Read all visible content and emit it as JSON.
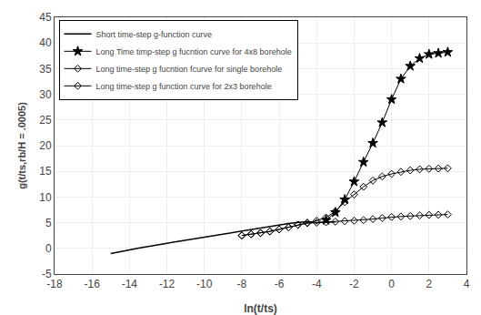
{
  "chart_data": {
    "type": "line",
    "xlabel": "ln(t/ts)",
    "ylabel": "g(t/ts,rb/H = .0005)",
    "xlim": [
      -18,
      4
    ],
    "ylim": [
      -5,
      45
    ],
    "xticks": [
      -18,
      -16,
      -14,
      -12,
      -10,
      -8,
      -6,
      -4,
      -2,
      0,
      2,
      4
    ],
    "yticks": [
      -5,
      0,
      5,
      10,
      15,
      20,
      25,
      30,
      35,
      40,
      45
    ],
    "grid": true,
    "legend": "upper left",
    "series": [
      {
        "name": "Short time-step g-function curve",
        "color": "#000000",
        "marker": "none",
        "x": [
          -15,
          -14.5,
          -14,
          -13.5,
          -13,
          -12.5,
          -12,
          -11.5,
          -11,
          -10.5,
          -10,
          -9.5,
          -9,
          -8.5,
          -8,
          -7.5,
          -7,
          -6.5,
          -6,
          -5.5,
          -5,
          -4.5,
          -4,
          -3.5,
          -3
        ],
        "values": [
          -1.0,
          -0.7,
          -0.3,
          0.05,
          0.4,
          0.7,
          1.0,
          1.3,
          1.6,
          1.9,
          2.2,
          2.5,
          2.8,
          3.1,
          3.4,
          3.7,
          4.0,
          4.3,
          4.6,
          4.85,
          5.05,
          5.2,
          5.0,
          5.1,
          5.15
        ]
      },
      {
        "name": "Long Time timp-step g fucntion curve for 4x8 borehole",
        "color": "#000000",
        "marker": "star",
        "x": [
          -3.5,
          -3,
          -2.5,
          -2,
          -1.5,
          -1,
          -0.5,
          0,
          0.5,
          1,
          1.5,
          2,
          2.5,
          3
        ],
        "values": [
          5.5,
          7.0,
          9.5,
          13.0,
          16.8,
          20.5,
          24.5,
          29.0,
          33.0,
          35.5,
          37.0,
          37.8,
          38.0,
          38.2
        ]
      },
      {
        "name": "Long time-step g fucntion fcurve for single borehole",
        "color": "#000000",
        "marker": "diamond-open",
        "x": [
          -8,
          -7.5,
          -7,
          -6.5,
          -6,
          -5.5,
          -5,
          -4.5,
          -4,
          -3.5,
          -3,
          -2.5,
          -2,
          -1.5,
          -1,
          -0.5,
          0,
          0.5,
          1,
          1.5,
          2,
          2.5,
          3
        ],
        "values": [
          2.5,
          2.75,
          3.0,
          3.3,
          3.7,
          4.1,
          4.6,
          5.0,
          5.4,
          6.0,
          7.2,
          9.0,
          10.5,
          12.0,
          13.2,
          14.0,
          14.5,
          14.9,
          15.2,
          15.4,
          15.5,
          15.55,
          15.6
        ]
      },
      {
        "name": "Long time-step g function curve for 2x3 borehole",
        "color": "#000000",
        "marker": "diamond-open",
        "x": [
          -8,
          -7.5,
          -7,
          -6.5,
          -6,
          -5.5,
          -5,
          -4.5,
          -4,
          -3.5,
          -3,
          -2.5,
          -2,
          -1.5,
          -1,
          -0.5,
          0,
          0.5,
          1,
          1.5,
          2,
          2.5,
          3
        ],
        "values": [
          2.5,
          2.75,
          3.0,
          3.3,
          3.7,
          4.1,
          4.6,
          4.9,
          5.0,
          5.1,
          5.2,
          5.3,
          5.4,
          5.5,
          5.7,
          5.9,
          6.1,
          6.2,
          6.3,
          6.4,
          6.5,
          6.55,
          6.6
        ]
      }
    ]
  }
}
